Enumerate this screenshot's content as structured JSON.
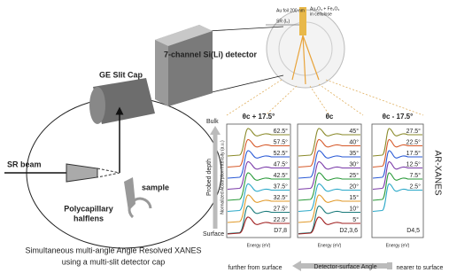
{
  "detector_label": "7-channel Si(Li) detector",
  "slit_cap_label": "GE Slit Cap",
  "beam_label": "SR beam",
  "sample_label": "sample",
  "lens_label": [
    "Polycapillary",
    "halflens"
  ],
  "caption": [
    "Simultaneous multi-angle Angle Resolved XANES",
    "using a multi-slit detector cap"
  ],
  "inset": {
    "foil": "Au foil 200 nm",
    "sample": [
      "Au₂O₃ + Fe₂O₃",
      "in cellulose"
    ],
    "beam": "SR (I₀)"
  },
  "panels": [
    {
      "header": "θc + 17.5°",
      "angles": [
        "62.5°",
        "57.5°",
        "52.5°",
        "47.5°",
        "42.5°",
        "37.5°",
        "32.5°",
        "27.5°",
        "22.5°"
      ],
      "detectors": "D7,8",
      "x_label": "Energy (eV)"
    },
    {
      "header": "θc",
      "angles": [
        "45°",
        "40°",
        "35°",
        "30°",
        "25°",
        "20°",
        "15°",
        "10°",
        "5°"
      ],
      "detectors": "D2,3,6",
      "x_label": "Energy (eV)"
    },
    {
      "header": "θc - 17.5°",
      "angles": [
        "27.5°",
        "22.5°",
        "17.5°",
        "12.5°",
        "7.5°",
        "2.5°"
      ],
      "detectors": "D4,5",
      "x_label": "Energy (eV)"
    }
  ],
  "y_axis_label": "Normalized Absorption Intensity (a.u.)",
  "depth": {
    "top": "Bulk",
    "label": "Probed depth",
    "bottom": "Surface"
  },
  "side_title": "AR-XANES",
  "angle_axis": {
    "left": "further from surface",
    "label": "Detector-surface Angle",
    "right": "nearer to surface"
  }
}
